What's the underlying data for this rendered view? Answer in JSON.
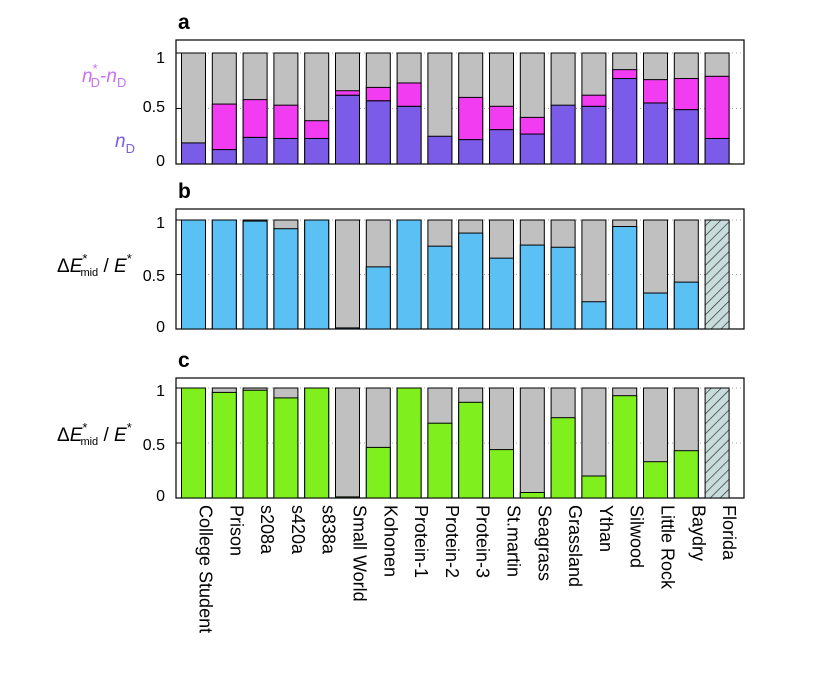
{
  "chart_data": [
    {
      "panel": "a",
      "type": "bar",
      "stacked": true,
      "categories": [
        "College Student",
        "Prison",
        "s208a",
        "s420a",
        "s838a",
        "Small World",
        "Kohonen",
        "Protein-1",
        "Protein-2",
        "Protein-3",
        "St.martin",
        "Seagrass",
        "Grassland",
        "Ythan",
        "Silwood",
        "Little Rock",
        "Baydry",
        "Florida"
      ],
      "series": [
        {
          "name": "n_D",
          "color": "#7b5ce8",
          "values": [
            0.19,
            0.13,
            0.24,
            0.23,
            0.23,
            0.62,
            0.57,
            0.52,
            0.25,
            0.22,
            0.31,
            0.27,
            0.53,
            0.52,
            0.77,
            0.55,
            0.49,
            0.23
          ]
        },
        {
          "name": "n*_D - n_D",
          "color": "#f23cf2",
          "values": [
            0,
            0.41,
            0.34,
            0.3,
            0.16,
            0.04,
            0.12,
            0.21,
            0,
            0.38,
            0.21,
            0.15,
            0,
            0.1,
            0.08,
            0.21,
            0.28,
            0.56
          ]
        }
      ],
      "remainder_color": "#c0c0c0",
      "ylim": [
        0,
        1.05
      ],
      "yticks": [
        0,
        0.5,
        1
      ],
      "ylabel_top": "n*_D-n_D",
      "ylabel_bottom": "n_D"
    },
    {
      "panel": "b",
      "type": "bar",
      "stacked": true,
      "categories": [
        "College Student",
        "Prison",
        "s208a",
        "s420a",
        "s838a",
        "Small World",
        "Kohonen",
        "Protein-1",
        "Protein-2",
        "Protein-3",
        "St.martin",
        "Seagrass",
        "Grassland",
        "Ythan",
        "Silwood",
        "Little Rock",
        "Baydry",
        "Florida"
      ],
      "series": [
        {
          "name": "ΔE*mid / E*",
          "color": "#5bc1f5",
          "values": [
            1.0,
            1.0,
            0.99,
            0.92,
            1.0,
            0.01,
            0.57,
            1.0,
            0.76,
            0.88,
            0.65,
            0.77,
            0.75,
            0.25,
            0.94,
            0.33,
            0.43,
            null
          ]
        }
      ],
      "remainder_color": "#c0c0c0",
      "hatched_categories": [
        "Florida"
      ],
      "hatch_color": "#c9dcdc",
      "ylim": [
        0,
        1.05
      ],
      "yticks": [
        0,
        0.5,
        1
      ],
      "ylabel": "ΔE*mid / E*"
    },
    {
      "panel": "c",
      "type": "bar",
      "stacked": true,
      "categories": [
        "College Student",
        "Prison",
        "s208a",
        "s420a",
        "s838a",
        "Small World",
        "Kohonen",
        "Protein-1",
        "Protein-2",
        "Protein-3",
        "St.martin",
        "Seagrass",
        "Grassland",
        "Ythan",
        "Silwood",
        "Little Rock",
        "Baydry",
        "Florida"
      ],
      "series": [
        {
          "name": "ΔE*mid / E*",
          "color": "#7ff01e",
          "values": [
            1.0,
            0.96,
            0.98,
            0.91,
            1.0,
            0.01,
            0.46,
            1.0,
            0.68,
            0.87,
            0.44,
            0.05,
            0.73,
            0.2,
            0.93,
            0.33,
            0.43,
            null
          ]
        }
      ],
      "remainder_color": "#c0c0c0",
      "hatched_categories": [
        "Florida"
      ],
      "hatch_color": "#c9dcdc",
      "ylim": [
        0,
        1.05
      ],
      "yticks": [
        0,
        0.5,
        1
      ],
      "ylabel": "ΔE*mid / E*"
    }
  ],
  "labels": {
    "panel_a": "a",
    "panel_b": "b",
    "panel_c": "c",
    "tick_0": "0",
    "tick_05": "0.5",
    "tick_1": "1",
    "n_main": "n",
    "n_sub_D": "D",
    "n_star": "*",
    "n_dash": "-",
    "delta": "Δ",
    "E": "E",
    "mid": "mid",
    "slash": " / "
  },
  "colors": {
    "nD": "#7b5ce8",
    "nStar": "#f23cf2",
    "gray": "#c0c0c0",
    "blue": "#5bc1f5",
    "green": "#7ff01e",
    "hatch_bg": "#c9dcdc",
    "ylabel_nstar": "#c872f0",
    "ylabel_nd": "#7b5ce8"
  }
}
